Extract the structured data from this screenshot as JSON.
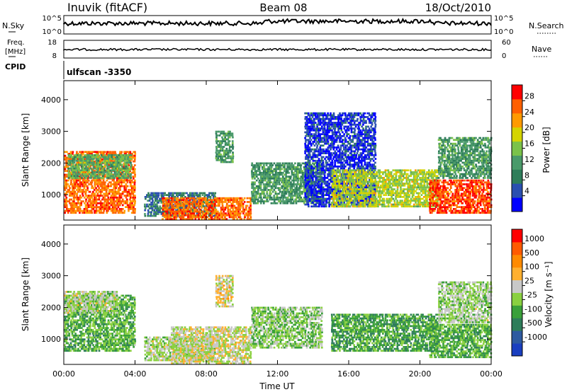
{
  "header": {
    "station": "Inuvik (fitACF)",
    "beam": "Beam 08",
    "date": "18/Oct/2010"
  },
  "strips": {
    "nsky_label": "N.Sky",
    "nsky_ticks": [
      "10^5",
      "10^0"
    ],
    "nsearch_label": "N.Search",
    "nsearch_ticks": [
      "10^5",
      "10^0"
    ],
    "freq_label": "Freq.",
    "freq_unit": "[MHz]",
    "freq_ticks": [
      "18",
      "8"
    ],
    "nave_label": "Nave",
    "nave_ticks": [
      "60",
      "0"
    ],
    "cpid_label": "CPID",
    "cpid_value": "ulfscan -3350"
  },
  "colors": {
    "power_scale": [
      "#0000ff",
      "#2a4fb0",
      "#2e7d5a",
      "#4a9a6a",
      "#7bc24a",
      "#d4d400",
      "#ff9a00",
      "#ff6000",
      "#ff0000"
    ],
    "velocity_scale": [
      "#1a3fc0",
      "#2e5aa0",
      "#2e7d5a",
      "#3aa03a",
      "#8ad040",
      "#c8c8c8",
      "#ffb030",
      "#ff8a00",
      "#ff5a00",
      "#ff0000"
    ]
  },
  "chart_data": [
    {
      "type": "heatmap",
      "panel": "power",
      "ylabel": "Slant Range [km]",
      "ylim": [
        200,
        4600
      ],
      "yticks": [
        "4000",
        "3000",
        "2000",
        "1000"
      ],
      "xlim": [
        0,
        24
      ],
      "xticks": [
        "00:00",
        "04:00",
        "08:00",
        "12:00",
        "16:00",
        "20:00",
        "00:00"
      ],
      "colorbar_label": "Power [dB]",
      "colorbar_ticks": [
        "28",
        "24",
        "20",
        "16",
        "12",
        "8",
        "4"
      ],
      "colorbar_range": [
        0,
        32
      ],
      "regions": [
        {
          "t": [
            0.0,
            4.0
          ],
          "r": [
            400,
            2400
          ],
          "level": 26
        },
        {
          "t": [
            0.2,
            3.8
          ],
          "r": [
            1500,
            2300
          ],
          "level": 14
        },
        {
          "t": [
            4.5,
            8.5
          ],
          "r": [
            300,
            1100
          ],
          "level": 8
        },
        {
          "t": [
            5.5,
            10.5
          ],
          "r": [
            200,
            900
          ],
          "level": 26
        },
        {
          "t": [
            8.5,
            9.5
          ],
          "r": [
            2000,
            3000
          ],
          "level": 12
        },
        {
          "t": [
            10.5,
            14.5
          ],
          "r": [
            700,
            2000
          ],
          "level": 12
        },
        {
          "t": [
            13.5,
            17.5
          ],
          "r": [
            600,
            3600
          ],
          "level": 4
        },
        {
          "t": [
            15.0,
            21.0
          ],
          "r": [
            600,
            1800
          ],
          "level": 18
        },
        {
          "t": [
            20.5,
            24.0
          ],
          "r": [
            400,
            1500
          ],
          "level": 28
        },
        {
          "t": [
            21.0,
            24.0
          ],
          "r": [
            1500,
            2800
          ],
          "level": 12
        }
      ]
    },
    {
      "type": "heatmap",
      "panel": "velocity",
      "ylabel": "Slant Range [km]",
      "ylim": [
        200,
        4600
      ],
      "yticks": [
        "4000",
        "3000",
        "2000",
        "1000"
      ],
      "xlim": [
        0,
        24
      ],
      "xticks": [
        "00:00",
        "04:00",
        "08:00",
        "12:00",
        "16:00",
        "20:00",
        "00:00"
      ],
      "xlabel": "Time UT",
      "colorbar_label": "Velocity [m s⁻¹]",
      "colorbar_ticks": [
        "1000",
        "500",
        "100",
        "25",
        "-25",
        "-100",
        "-500",
        "-1000"
      ],
      "colorbar_range": [
        -1250,
        1250
      ],
      "regions": [
        {
          "t": [
            0.0,
            4.0
          ],
          "r": [
            600,
            2400
          ],
          "level": -300
        },
        {
          "t": [
            0.0,
            3.0
          ],
          "r": [
            1800,
            2500
          ],
          "level": 0
        },
        {
          "t": [
            4.5,
            8.5
          ],
          "r": [
            300,
            1100
          ],
          "level": 0
        },
        {
          "t": [
            6.0,
            10.5
          ],
          "r": [
            200,
            1400
          ],
          "level": 80
        },
        {
          "t": [
            8.5,
            9.5
          ],
          "r": [
            2000,
            3000
          ],
          "level": 200
        },
        {
          "t": [
            10.5,
            14.5
          ],
          "r": [
            700,
            2000
          ],
          "level": -120
        },
        {
          "t": [
            15.0,
            21.0
          ],
          "r": [
            600,
            1800
          ],
          "level": -400
        },
        {
          "t": [
            20.5,
            24.0
          ],
          "r": [
            400,
            1500
          ],
          "level": -300
        },
        {
          "t": [
            21.0,
            24.0
          ],
          "r": [
            1500,
            2800
          ],
          "level": -60
        }
      ]
    }
  ]
}
